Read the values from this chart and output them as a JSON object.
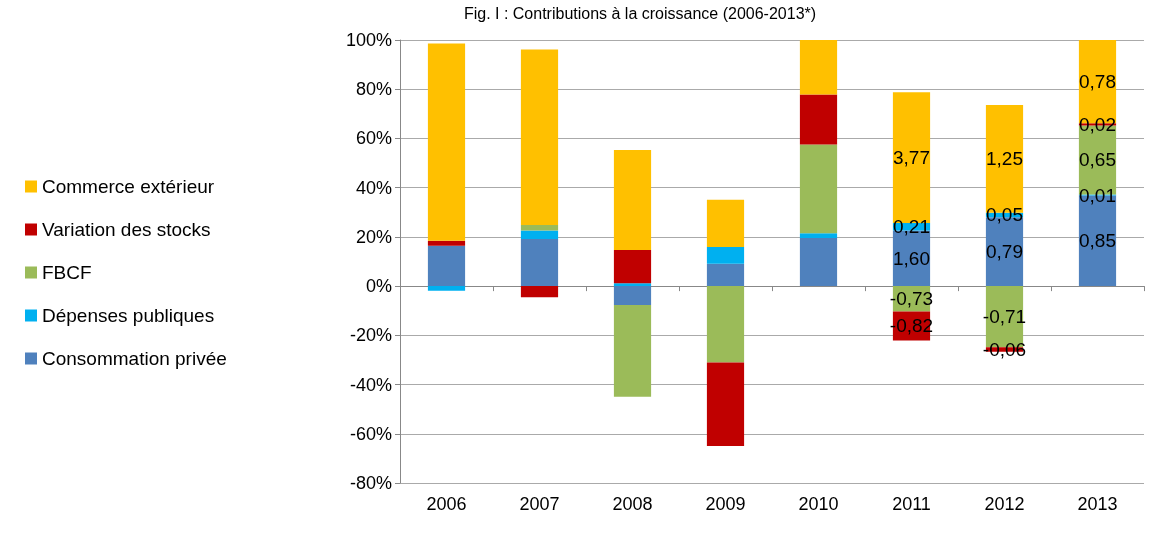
{
  "chart_data": {
    "type": "bar",
    "stacked": true,
    "title": "Fig. I : Contributions à la croissance (2006-2013*)",
    "categories": [
      "2006",
      "2007",
      "2008",
      "2009",
      "2010",
      "2011",
      "2012",
      "2013"
    ],
    "series": [
      {
        "name": "Consommation privée",
        "color": "#4f81bd",
        "values": [
          16.4,
          19.1,
          -7.7,
          9.1,
          19.5,
          22.6,
          28.0,
          36.8
        ]
      },
      {
        "name": "Dépenses publiques",
        "color": "#00b0f0",
        "values": [
          -1.9,
          3.5,
          1.2,
          6.8,
          2.0,
          3.0,
          1.8,
          0.4
        ]
      },
      {
        "name": "FBCF",
        "color": "#9bbb59",
        "values": [
          null,
          2.2,
          -37.3,
          -31.0,
          36.0,
          -10.3,
          -24.8,
          28.1
        ]
      },
      {
        "name": "Variation des stocks",
        "color": "#c00000",
        "values": [
          2.0,
          -4.5,
          13.5,
          -34.0,
          20.4,
          -11.8,
          -1.9,
          0.9
        ]
      },
      {
        "name": "Commerce extérieur",
        "color": "#ffc000",
        "values": [
          80.2,
          71.3,
          40.6,
          19.2,
          22.1,
          53.2,
          43.8,
          33.8
        ]
      }
    ],
    "annotations": [
      {
        "text": "3,77",
        "x": "2011",
        "y": 78.8
      },
      {
        "text": "0,21",
        "x": "2011",
        "y": 25.6
      },
      {
        "text": "1,60",
        "x": "2011",
        "y": 22.6
      },
      {
        "text": "-0,73",
        "x": "2011",
        "y": -10.3
      },
      {
        "text": "-0,82",
        "x": "2011",
        "y": -22.1
      },
      {
        "text": "1,25",
        "x": "2012",
        "y": 73.6
      },
      {
        "text": "0,05",
        "x": "2012",
        "y": 29.8
      },
      {
        "text": "0,79",
        "x": "2012",
        "y": 28.0
      },
      {
        "text": "-0,71",
        "x": "2012",
        "y": -24.8
      },
      {
        "text": "-0,06",
        "x": "2012",
        "y": -26.7
      },
      {
        "text": "0,78",
        "x": "2013",
        "y": 100.0
      },
      {
        "text": "0,02",
        "x": "2013",
        "y": 66.2
      },
      {
        "text": "0,65",
        "x": "2013",
        "y": 65.3
      },
      {
        "text": "0,01",
        "x": "2013",
        "y": 37.2
      },
      {
        "text": "0,85",
        "x": "2013",
        "y": 36.8
      }
    ],
    "ylim": [
      -80,
      100
    ],
    "yticks": [
      {
        "value": -80,
        "label": "-80%"
      },
      {
        "value": -60,
        "label": "-60%"
      },
      {
        "value": -40,
        "label": "-40%"
      },
      {
        "value": -20,
        "label": "-20%"
      },
      {
        "value": 0,
        "label": "0%"
      },
      {
        "value": 20,
        "label": "20%"
      },
      {
        "value": 40,
        "label": "40%"
      },
      {
        "value": 60,
        "label": "60%"
      },
      {
        "value": 80,
        "label": "80%"
      },
      {
        "value": 100,
        "label": "100%"
      }
    ],
    "grid": "y",
    "legend": "left"
  }
}
